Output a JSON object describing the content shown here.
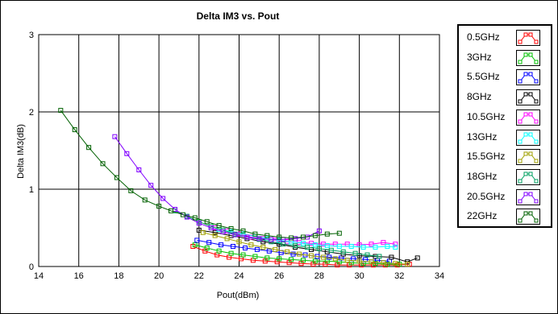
{
  "chart_data": {
    "type": "line",
    "title": "Delta IM3 vs. Pout",
    "xlabel": "Pout(dBm)",
    "ylabel": "Delta IM3(dB)",
    "xlim": [
      14,
      34
    ],
    "ylim": [
      0,
      3
    ],
    "xticks": [
      "14",
      "16",
      "18",
      "20",
      "22",
      "24",
      "26",
      "28",
      "30",
      "32",
      "34"
    ],
    "yticks": [
      "0",
      "1",
      "2",
      "3"
    ],
    "grid": true,
    "legend_position": "right",
    "series": [
      {
        "name": "0.5GHz",
        "color": "#ff0000",
        "x": [
          21.7,
          22.3,
          22.9,
          23.5,
          24.1,
          24.7,
          25.3,
          25.9,
          26.5,
          27.1,
          27.7,
          28.3,
          28.9,
          29.5,
          30.1,
          30.7,
          31.3,
          31.9,
          32.5
        ],
        "y": [
          0.26,
          0.2,
          0.15,
          0.12,
          0.1,
          0.08,
          0.07,
          0.06,
          0.05,
          0.04,
          0.03,
          0.03,
          0.02,
          0.02,
          0.02,
          0.02,
          0.02,
          0.02,
          0.03
        ]
      },
      {
        "name": "3GHz",
        "color": "#00c000",
        "x": [
          21.8,
          22.4,
          23.0,
          23.6,
          24.2,
          24.8,
          25.4,
          26.0,
          26.6,
          27.2,
          27.8,
          28.4,
          29.0,
          29.6,
          30.2,
          30.8,
          31.4,
          32.0
        ],
        "y": [
          0.28,
          0.24,
          0.2,
          0.17,
          0.15,
          0.13,
          0.11,
          0.1,
          0.09,
          0.08,
          0.07,
          0.07,
          0.06,
          0.05,
          0.04,
          0.04,
          0.03,
          0.03
        ]
      },
      {
        "name": "5.5GHz",
        "color": "#0000ff",
        "x": [
          21.9,
          22.5,
          23.1,
          23.7,
          24.3,
          24.9,
          25.5,
          26.1,
          26.7,
          27.3,
          27.9,
          28.5,
          29.1,
          29.7,
          30.3,
          30.9,
          31.5
        ],
        "y": [
          0.34,
          0.31,
          0.28,
          0.26,
          0.24,
          0.22,
          0.2,
          0.18,
          0.16,
          0.15,
          0.13,
          0.12,
          0.11,
          0.1,
          0.09,
          0.08,
          0.07
        ]
      },
      {
        "name": "8GHz",
        "color": "#000000",
        "x": [
          22.0,
          22.8,
          23.6,
          24.4,
          25.2,
          26.0,
          26.8,
          27.6,
          28.4,
          29.2,
          30.0,
          30.8,
          31.6,
          32.4,
          32.9
        ],
        "y": [
          0.47,
          0.44,
          0.4,
          0.36,
          0.32,
          0.29,
          0.25,
          0.22,
          0.19,
          0.16,
          0.14,
          0.13,
          0.12,
          0.06,
          0.11
        ]
      },
      {
        "name": "10.5GHz",
        "color": "#ff00ff",
        "x": [
          22.8,
          23.4,
          24.0,
          24.6,
          25.2,
          25.8,
          26.4,
          27.0,
          27.6,
          28.2,
          28.8,
          29.4,
          30.0,
          30.6,
          31.2,
          31.8
        ],
        "y": [
          0.5,
          0.46,
          0.42,
          0.38,
          0.36,
          0.34,
          0.32,
          0.31,
          0.3,
          0.29,
          0.29,
          0.29,
          0.28,
          0.29,
          0.31,
          0.29
        ]
      },
      {
        "name": "13GHz",
        "color": "#00ffff",
        "x": [
          23.0,
          23.6,
          24.2,
          24.8,
          25.4,
          26.0,
          26.6,
          27.2,
          27.8,
          28.4,
          29.0,
          29.6,
          30.2,
          30.8,
          31.4,
          31.8
        ],
        "y": [
          0.48,
          0.45,
          0.42,
          0.39,
          0.36,
          0.34,
          0.32,
          0.3,
          0.28,
          0.27,
          0.26,
          0.26,
          0.25,
          0.25,
          0.26,
          0.25
        ]
      },
      {
        "name": "15.5GHz",
        "color": "#a0a000",
        "x": [
          22.2,
          22.8,
          23.4,
          24.0,
          24.6,
          25.2,
          25.8,
          26.4,
          27.0,
          27.6,
          28.2,
          28.8,
          29.4,
          30.0,
          30.6,
          31.2,
          31.8,
          32.4
        ],
        "y": [
          0.44,
          0.4,
          0.36,
          0.32,
          0.28,
          0.25,
          0.22,
          0.19,
          0.16,
          0.14,
          0.12,
          0.1,
          0.08,
          0.07,
          0.06,
          0.05,
          0.04,
          0.03
        ]
      },
      {
        "name": "18GHz",
        "color": "#00a060",
        "x": [
          20.8,
          21.4,
          22.0,
          22.6,
          23.2,
          23.8,
          24.4,
          25.0,
          25.6,
          26.2,
          26.8,
          27.4,
          28.0,
          28.6,
          29.2,
          29.8,
          30.4,
          31.0
        ],
        "y": [
          0.72,
          0.65,
          0.58,
          0.52,
          0.47,
          0.42,
          0.38,
          0.35,
          0.32,
          0.29,
          0.27,
          0.25,
          0.23,
          0.21,
          0.19,
          0.17,
          0.15,
          0.13
        ]
      },
      {
        "name": "20.5GHz",
        "color": "#8000ff",
        "x": [
          17.8,
          18.4,
          19.0,
          19.6,
          20.2,
          20.8,
          21.4,
          22.0,
          22.6,
          23.2,
          23.8,
          24.4,
          25.0,
          25.6,
          26.2,
          26.8,
          27.4,
          28.0
        ],
        "y": [
          1.68,
          1.46,
          1.25,
          1.05,
          0.88,
          0.74,
          0.64,
          0.56,
          0.5,
          0.45,
          0.41,
          0.38,
          0.36,
          0.35,
          0.35,
          0.36,
          0.38,
          0.46
        ]
      },
      {
        "name": "22GHz",
        "color": "#006000",
        "x": [
          15.1,
          15.8,
          16.5,
          17.2,
          17.9,
          18.6,
          19.3,
          20.0,
          20.6,
          21.2,
          21.8,
          22.4,
          23.0,
          23.6,
          24.2,
          24.8,
          25.4,
          26.0,
          26.6,
          27.2,
          27.8,
          28.4,
          29.0
        ],
        "y": [
          2.02,
          1.77,
          1.54,
          1.33,
          1.15,
          0.98,
          0.86,
          0.78,
          0.72,
          0.67,
          0.63,
          0.58,
          0.53,
          0.49,
          0.46,
          0.42,
          0.4,
          0.38,
          0.37,
          0.38,
          0.4,
          0.42,
          0.43
        ]
      }
    ]
  }
}
